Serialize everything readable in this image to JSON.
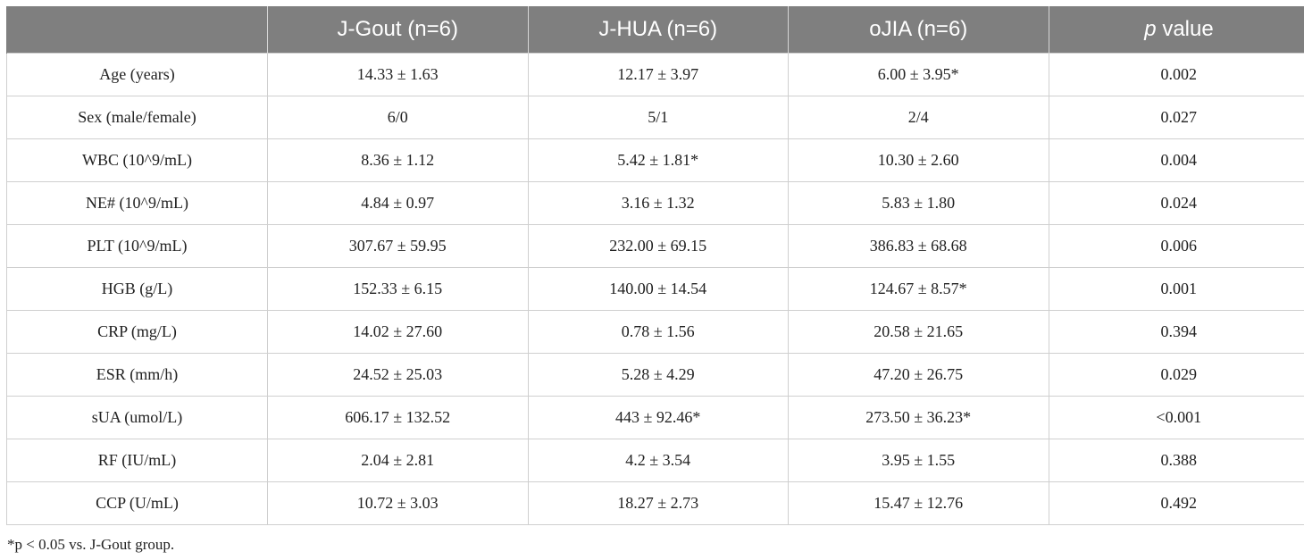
{
  "table": {
    "headers": [
      "",
      "J-Gout (n=6)",
      "J-HUA (n=6)",
      "oJIA (n=6)"
    ],
    "p_header": {
      "italic": "p",
      "rest": " value"
    },
    "rows": [
      [
        "Age (years)",
        "14.33 ± 1.63",
        "12.17 ± 3.97",
        "6.00 ± 3.95*",
        "0.002"
      ],
      [
        "Sex (male/female)",
        "6/0",
        "5/1",
        "2/4",
        "0.027"
      ],
      [
        "WBC (10^9/mL)",
        "8.36 ± 1.12",
        "5.42 ± 1.81*",
        "10.30 ± 2.60",
        "0.004"
      ],
      [
        "NE# (10^9/mL)",
        "4.84 ± 0.97",
        "3.16 ± 1.32",
        "5.83 ± 1.80",
        "0.024"
      ],
      [
        "PLT (10^9/mL)",
        "307.67 ± 59.95",
        "232.00 ± 69.15",
        "386.83 ± 68.68",
        "0.006"
      ],
      [
        "HGB (g/L)",
        "152.33 ± 6.15",
        "140.00 ± 14.54",
        "124.67 ± 8.57*",
        "0.001"
      ],
      [
        "CRP (mg/L)",
        "14.02 ± 27.60",
        "0.78 ± 1.56",
        "20.58 ± 21.65",
        "0.394"
      ],
      [
        "ESR (mm/h)",
        "24.52 ± 25.03",
        "5.28 ± 4.29",
        "47.20 ± 26.75",
        "0.029"
      ],
      [
        "sUA (umol/L)",
        "606.17 ± 132.52",
        "443 ± 92.46*",
        "273.50 ± 36.23*",
        "<0.001"
      ],
      [
        "RF (IU/mL)",
        "2.04 ± 2.81",
        "4.2 ± 3.54",
        "3.95 ± 1.55",
        "0.388"
      ],
      [
        "CCP (U/mL)",
        "10.72 ± 3.03",
        "18.27 ± 2.73",
        "15.47 ± 12.76",
        "0.492"
      ]
    ]
  },
  "footnote": "*p < 0.05 vs. J-Gout group."
}
